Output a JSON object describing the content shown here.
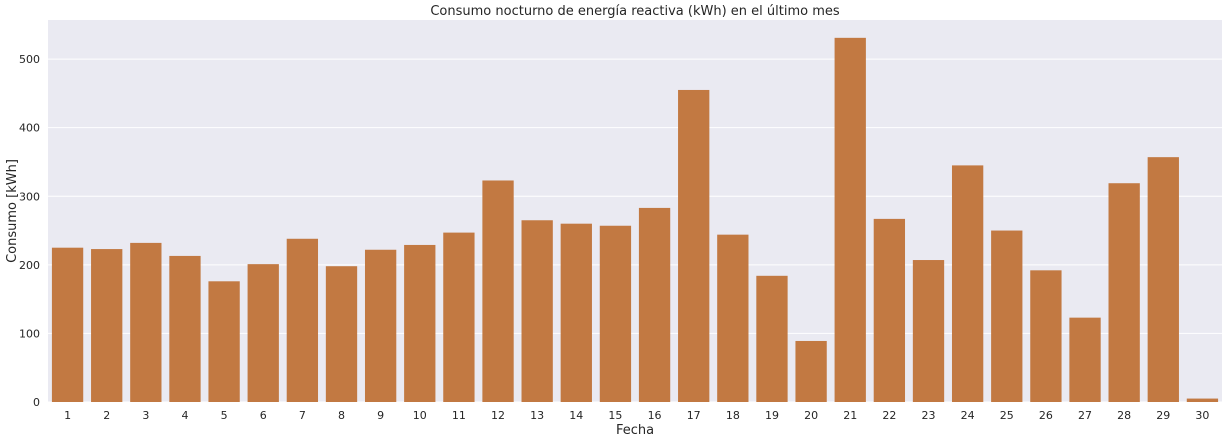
{
  "chart_data": {
    "type": "bar",
    "title": "Consumo nocturno de energía reactiva (kWh) en el último mes",
    "xlabel": "Fecha",
    "ylabel": "Consumo [kWh]",
    "categories": [
      "1",
      "2",
      "3",
      "4",
      "5",
      "6",
      "7",
      "8",
      "9",
      "10",
      "11",
      "12",
      "13",
      "14",
      "15",
      "16",
      "17",
      "18",
      "19",
      "20",
      "21",
      "22",
      "23",
      "24",
      "25",
      "26",
      "27",
      "28",
      "29",
      "30"
    ],
    "values": [
      225,
      223,
      232,
      213,
      176,
      201,
      238,
      198,
      222,
      229,
      247,
      323,
      265,
      260,
      257,
      283,
      455,
      244,
      184,
      89,
      531,
      267,
      207,
      345,
      250,
      192,
      123,
      319,
      357,
      5
    ],
    "ylim": [
      0,
      557
    ],
    "yticks": [
      0,
      100,
      200,
      300,
      400,
      500
    ],
    "grid": true,
    "colors": {
      "bar": "#C27942",
      "background": "#EAEAF2",
      "grid": "#FFFFFF"
    }
  }
}
